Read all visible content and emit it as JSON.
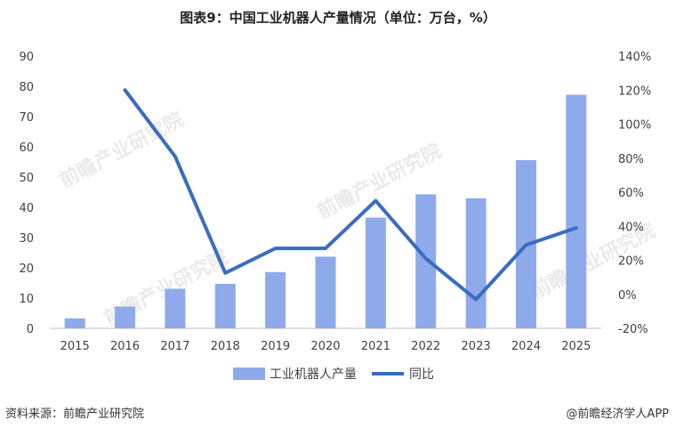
{
  "title": "图表9：中国工业机器人产量情况（单位：万台，%）",
  "watermark": "前瞻产业研究院",
  "footer": {
    "source": "资料来源：前瞻产业研究院",
    "credit": "@前瞻经济学人APP"
  },
  "chart_data": {
    "type": "bar+line",
    "categories": [
      "2015",
      "2016",
      "2017",
      "2018",
      "2019",
      "2020",
      "2021",
      "2022",
      "2023",
      "2024",
      "2025"
    ],
    "series": [
      {
        "name": "工业机器人产量",
        "type": "bar",
        "axis": "left",
        "values": [
          3.3,
          7.2,
          13.1,
          14.7,
          18.6,
          23.7,
          36.6,
          44.3,
          43.0,
          55.6,
          77.2
        ]
      },
      {
        "name": "同比",
        "type": "line",
        "axis": "right",
        "values": [
          null,
          120,
          81,
          12.5,
          27,
          27,
          55,
          21,
          -3,
          29,
          39
        ]
      }
    ],
    "y_left": {
      "min": 0,
      "max": 90,
      "ticks": [
        0,
        10,
        20,
        30,
        40,
        50,
        60,
        70,
        80,
        90
      ]
    },
    "y_right": {
      "min": -20,
      "max": 140,
      "ticks": [
        -20,
        0,
        20,
        40,
        60,
        80,
        100,
        120,
        140
      ],
      "tick_labels": [
        "-20%",
        "0%",
        "20%",
        "40%",
        "60%",
        "80%",
        "100%",
        "120%",
        "140%"
      ]
    },
    "grid": false,
    "legend": "bottom-center",
    "colors": {
      "bar": "#8faaeb",
      "line": "#3a6cc0"
    }
  }
}
